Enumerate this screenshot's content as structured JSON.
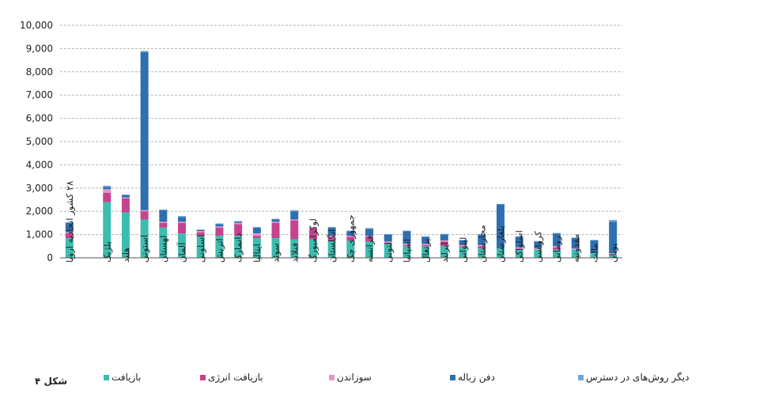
{
  "figure_label": "شکل ۴",
  "colors": {
    "recycling": "#3dbcb0",
    "energy": "#c6438f",
    "incineration": "#e795c7",
    "landfill": "#2e6fb0",
    "other": "#6fa8d6",
    "grid": "#b3b3b3",
    "axis": "#555555"
  },
  "chart_data": {
    "type": "bar",
    "stacked": true,
    "ylim": [
      0,
      10000
    ],
    "yticks": [
      0,
      1000,
      2000,
      3000,
      4000,
      5000,
      6000,
      7000,
      8000,
      9000,
      10000
    ],
    "ytick_labels": [
      "0",
      "1,000",
      "2,000",
      "3,000",
      "4,000",
      "5,000",
      "6,000",
      "7,000",
      "8,000",
      "9,000",
      "10,000"
    ],
    "grid": true,
    "legend_position": "bottom",
    "categories": [
      "۲۸ کشور اتحادیه اروپا",
      "",
      "بلژیک",
      "هلند",
      "استونی",
      "لهستان",
      "آلمان",
      "اسلونی",
      "اتریش",
      "دانمارک",
      "ایتالیا",
      "سوئد",
      "فنلاند",
      "لوکزامبورگ",
      "انگلستان",
      "جمهوری چک",
      "فرانسه",
      "لتونی",
      "اسپانیا",
      "پرتغال",
      "ایرلند",
      "لیتوانی",
      "مجارستان",
      "بلغارستان",
      "اسلواکی",
      "کرواسی",
      "رومانی",
      "مقدونیه",
      "مالت",
      "یونان"
    ],
    "series": [
      {
        "name": "بازیافت",
        "color_key": "recycling",
        "values": [
          850,
          null,
          2400,
          1950,
          1650,
          1300,
          1050,
          950,
          950,
          950,
          850,
          850,
          800,
          800,
          750,
          750,
          700,
          600,
          500,
          500,
          500,
          450,
          400,
          400,
          350,
          350,
          350,
          350,
          200,
          150
        ]
      },
      {
        "name": "بازیافت انرژی",
        "color_key": "energy",
        "values": [
          200,
          null,
          400,
          600,
          350,
          200,
          450,
          150,
          350,
          500,
          100,
          650,
          800,
          450,
          100,
          150,
          200,
          50,
          50,
          50,
          200,
          50,
          100,
          0,
          50,
          0,
          100,
          0,
          0,
          0
        ]
      },
      {
        "name": "سوزاندن",
        "color_key": "incineration",
        "values": [
          50,
          null,
          150,
          50,
          50,
          50,
          50,
          50,
          50,
          50,
          100,
          50,
          50,
          50,
          100,
          50,
          50,
          50,
          50,
          50,
          50,
          50,
          50,
          0,
          50,
          50,
          50,
          50,
          0,
          50
        ]
      },
      {
        "name": "دفن زباله",
        "color_key": "landfill",
        "values": [
          400,
          null,
          100,
          100,
          6800,
          500,
          200,
          50,
          100,
          50,
          250,
          100,
          350,
          0,
          350,
          200,
          300,
          300,
          550,
          300,
          250,
          200,
          450,
          1900,
          450,
          300,
          550,
          450,
          550,
          1350
        ]
      },
      {
        "name": "دیگر روش‌های در دسترس",
        "color_key": "other",
        "values": [
          30,
          null,
          50,
          20,
          50,
          30,
          50,
          20,
          30,
          30,
          30,
          30,
          50,
          30,
          30,
          20,
          30,
          20,
          20,
          20,
          30,
          20,
          20,
          20,
          20,
          20,
          20,
          20,
          20,
          80
        ]
      }
    ]
  }
}
